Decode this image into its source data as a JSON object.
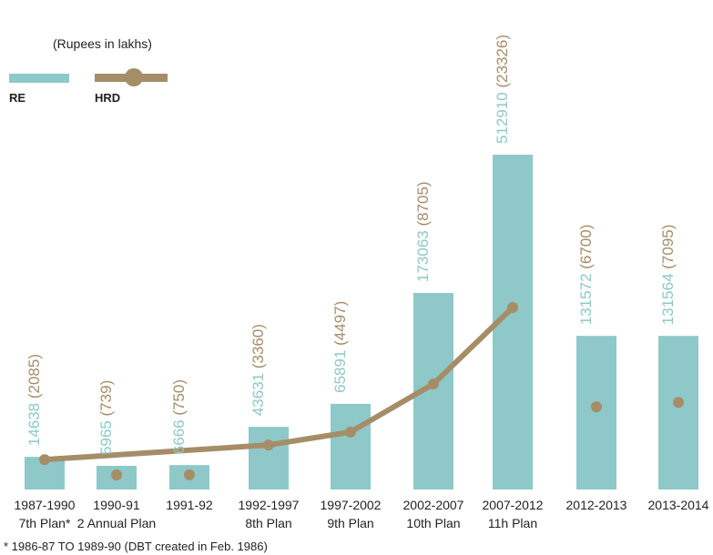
{
  "legend": {
    "unit": "(Rupees in lakhs)",
    "re_label": "RE",
    "hrd_label": "HRD"
  },
  "footnote": "* 1986-87 TO 1989-90 (DBT created in Feb. 1986)",
  "colors": {
    "re": "#8ec8c8",
    "hrd": "#a58d68",
    "bar": "#8ec8c8",
    "text": "#231f20"
  },
  "chart_data": {
    "type": "bar",
    "categories": [
      [
        "1987-1990",
        "7th Plan*"
      ],
      [
        "1990-91",
        "2 Annual Plan"
      ],
      [
        "1991-92",
        ""
      ],
      [
        "1992-1997",
        "8th Plan"
      ],
      [
        "1997-2002",
        "9th Plan"
      ],
      [
        "2002-2007",
        "10th Plan"
      ],
      [
        "2007-2012",
        "11h Plan"
      ],
      [
        "2012-2013",
        ""
      ],
      [
        "2013-2014",
        ""
      ]
    ],
    "series": [
      {
        "name": "RE",
        "values": [
          14638,
          5965,
          6666,
          43631,
          65891,
          173063,
          512910,
          131572,
          131564
        ]
      },
      {
        "name": "HRD",
        "values": [
          2085,
          739,
          750,
          3360,
          4497,
          8705,
          23326,
          6700,
          7095
        ]
      }
    ],
    "re_labels": [
      "14638",
      "5965",
      "6666",
      "43631",
      "65891",
      "173063",
      "512910",
      "131572",
      "131564"
    ],
    "hrd_labels": [
      "(2085)",
      "(739)",
      "(750)",
      "(3360)",
      "(4497)",
      "(8705)",
      "(23326)",
      "(6700)",
      "(7095)"
    ],
    "hrd_line_connected": [
      0,
      3,
      4,
      5,
      6
    ],
    "note": ""
  }
}
